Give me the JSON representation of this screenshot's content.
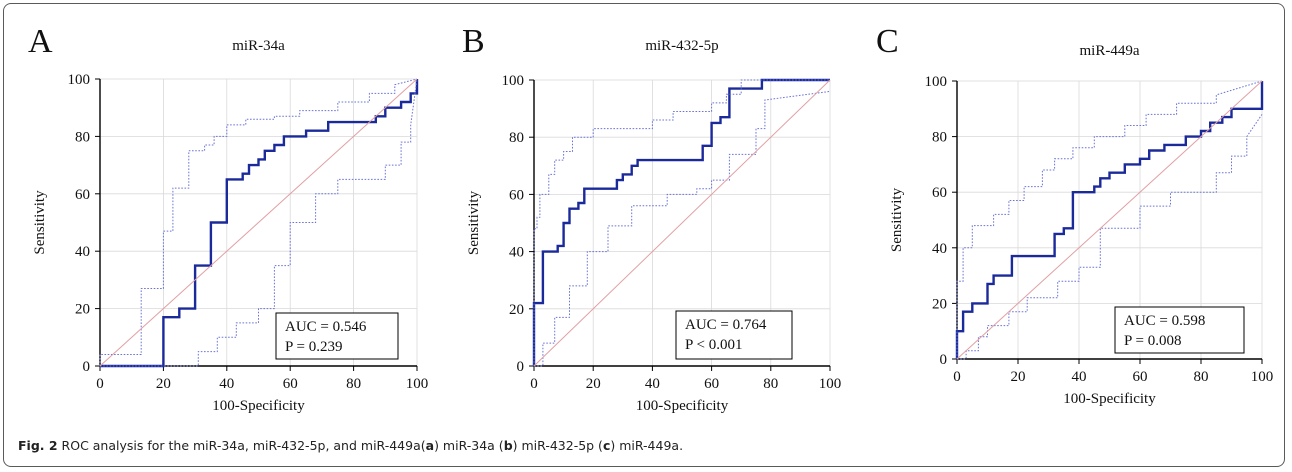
{
  "caption": {
    "fig_label": "Fig. 2",
    "t1": " ROC analysis for the miR-34a, miR-432-5p, and miR-449a(",
    "l1": "a",
    "t2": ") miR-34a (",
    "l2": "b",
    "t3": ") miR-432-5p (",
    "l3": "c",
    "t4": ") miR-449a."
  },
  "chart_data": [
    {
      "type": "line",
      "panel_letter": "A",
      "title": "miR-34a",
      "xlabel": "100-Specificity",
      "ylabel": "Sensitivity",
      "xlim": [
        0,
        100
      ],
      "ylim": [
        0,
        100
      ],
      "x_ticks": [
        0,
        20,
        40,
        60,
        80,
        100
      ],
      "y_ticks": [
        0,
        20,
        40,
        60,
        80,
        100
      ],
      "annotation": [
        "AUC = 0.546",
        "P = 0.239"
      ],
      "series": [
        {
          "role": "roc",
          "x": [
            0,
            20,
            20,
            25,
            25,
            30,
            30,
            35,
            35,
            40,
            40,
            45,
            45,
            47,
            47,
            50,
            50,
            52,
            52,
            55,
            55,
            58,
            58,
            60,
            60,
            65,
            65,
            70,
            70,
            72,
            72,
            87,
            87,
            90,
            90,
            95,
            95,
            98,
            98,
            100,
            100
          ],
          "y": [
            0,
            0,
            17,
            17,
            20,
            20,
            35,
            35,
            50,
            50,
            65,
            65,
            67,
            67,
            70,
            70,
            72,
            72,
            75,
            75,
            77,
            77,
            80,
            80,
            80,
            80,
            82,
            82,
            82,
            82,
            85,
            85,
            87,
            87,
            90,
            90,
            92,
            92,
            95,
            95,
            100
          ]
        },
        {
          "role": "ci-upper",
          "x": [
            0,
            0,
            13,
            13,
            20,
            20,
            23,
            23,
            28,
            28,
            33,
            33,
            36,
            36,
            40,
            40,
            46,
            46,
            55,
            55,
            63,
            63,
            75,
            75,
            85,
            85,
            93,
            93,
            100
          ],
          "y": [
            0,
            4,
            4,
            27,
            27,
            47,
            47,
            62,
            62,
            75,
            75,
            77,
            77,
            80,
            80,
            84,
            84,
            86,
            86,
            87,
            87,
            89,
            89,
            92,
            92,
            95,
            95,
            98,
            100
          ]
        },
        {
          "role": "ci-lower",
          "x": [
            0,
            31,
            31,
            37,
            37,
            43,
            43,
            50,
            50,
            55,
            55,
            60,
            60,
            68,
            68,
            75,
            75,
            90,
            90,
            95,
            95,
            98,
            98,
            100
          ],
          "y": [
            0,
            0,
            5,
            5,
            10,
            10,
            15,
            15,
            20,
            20,
            35,
            35,
            50,
            50,
            60,
            60,
            65,
            65,
            70,
            70,
            78,
            78,
            84,
            100
          ]
        },
        {
          "role": "reference",
          "x": [
            0,
            100
          ],
          "y": [
            0,
            100
          ]
        }
      ]
    },
    {
      "type": "line",
      "panel_letter": "B",
      "title": "miR-432-5p",
      "xlabel": "100-Specificity",
      "ylabel": "Sensitivity",
      "xlim": [
        0,
        100
      ],
      "ylim": [
        0,
        100
      ],
      "x_ticks": [
        0,
        20,
        40,
        60,
        80,
        100
      ],
      "y_ticks": [
        0,
        20,
        40,
        60,
        80,
        100
      ],
      "annotation": [
        "AUC = 0.764",
        "P < 0.001"
      ],
      "series": [
        {
          "role": "roc",
          "x": [
            0,
            0,
            3,
            3,
            8,
            8,
            10,
            10,
            12,
            12,
            15,
            15,
            17,
            17,
            28,
            28,
            30,
            30,
            33,
            33,
            35,
            35,
            57,
            57,
            60,
            60,
            63,
            63,
            66,
            66,
            77,
            77,
            100
          ],
          "y": [
            0,
            22,
            22,
            40,
            40,
            42,
            42,
            50,
            50,
            55,
            55,
            57,
            57,
            62,
            62,
            65,
            65,
            67,
            67,
            70,
            70,
            72,
            72,
            77,
            77,
            85,
            85,
            87,
            87,
            97,
            97,
            100,
            100
          ]
        },
        {
          "role": "ci-upper",
          "x": [
            0,
            0,
            1,
            1,
            2,
            2,
            5,
            5,
            7,
            7,
            10,
            10,
            13,
            13,
            20,
            20,
            40,
            40,
            47,
            47,
            60,
            60,
            65,
            65,
            70,
            70,
            100
          ],
          "y": [
            0,
            48,
            48,
            52,
            52,
            60,
            60,
            67,
            67,
            72,
            72,
            75,
            75,
            80,
            80,
            83,
            83,
            86,
            86,
            89,
            89,
            92,
            92,
            95,
            95,
            100,
            100
          ]
        },
        {
          "role": "ci-lower",
          "x": [
            0,
            3,
            3,
            7,
            7,
            12,
            12,
            18,
            18,
            25,
            25,
            33,
            33,
            45,
            45,
            55,
            55,
            60,
            60,
            66,
            66,
            75,
            75,
            78,
            78,
            100
          ],
          "y": [
            0,
            0,
            8,
            8,
            17,
            17,
            28,
            28,
            40,
            40,
            49,
            49,
            56,
            56,
            60,
            60,
            62,
            62,
            65,
            65,
            74,
            74,
            83,
            83,
            93,
            96
          ]
        },
        {
          "role": "reference",
          "x": [
            0,
            100
          ],
          "y": [
            0,
            100
          ]
        }
      ]
    },
    {
      "type": "line",
      "panel_letter": "C",
      "title": "miR-449a",
      "xlabel": "100-Specificity",
      "ylabel": "Sensitivity",
      "xlim": [
        0,
        100
      ],
      "ylim": [
        0,
        100
      ],
      "x_ticks": [
        0,
        20,
        40,
        60,
        80,
        100
      ],
      "y_ticks": [
        0,
        20,
        40,
        60,
        80,
        100
      ],
      "annotation": [
        "AUC = 0.598",
        "P = 0.008"
      ],
      "series": [
        {
          "role": "roc",
          "x": [
            0,
            0,
            2,
            2,
            5,
            5,
            10,
            10,
            12,
            12,
            18,
            18,
            32,
            32,
            35,
            35,
            38,
            38,
            45,
            45,
            47,
            47,
            50,
            50,
            55,
            55,
            60,
            60,
            63,
            63,
            68,
            68,
            75,
            75,
            80,
            80,
            83,
            83,
            87,
            87,
            90,
            90,
            100,
            100
          ],
          "y": [
            0,
            10,
            10,
            17,
            17,
            20,
            20,
            27,
            27,
            30,
            30,
            37,
            37,
            45,
            45,
            47,
            47,
            60,
            60,
            62,
            62,
            65,
            65,
            67,
            67,
            70,
            70,
            72,
            72,
            75,
            75,
            77,
            77,
            80,
            80,
            82,
            82,
            85,
            85,
            87,
            87,
            90,
            90,
            100
          ]
        },
        {
          "role": "ci-upper",
          "x": [
            0,
            0,
            2,
            2,
            5,
            5,
            12,
            12,
            17,
            17,
            22,
            22,
            28,
            28,
            32,
            32,
            38,
            38,
            45,
            45,
            55,
            55,
            62,
            62,
            72,
            72,
            85,
            85,
            100
          ],
          "y": [
            0,
            28,
            28,
            40,
            40,
            48,
            48,
            52,
            52,
            57,
            57,
            62,
            62,
            68,
            68,
            72,
            72,
            76,
            76,
            80,
            80,
            84,
            84,
            88,
            88,
            92,
            92,
            95,
            100
          ]
        },
        {
          "role": "ci-lower",
          "x": [
            0,
            3,
            3,
            7,
            7,
            10,
            10,
            17,
            17,
            23,
            23,
            33,
            33,
            40,
            40,
            47,
            47,
            60,
            60,
            70,
            70,
            85,
            85,
            90,
            90,
            95,
            95,
            100
          ],
          "y": [
            0,
            0,
            3,
            3,
            8,
            8,
            12,
            12,
            17,
            17,
            22,
            22,
            28,
            28,
            33,
            33,
            47,
            47,
            55,
            55,
            60,
            60,
            67,
            67,
            73,
            73,
            80,
            88
          ]
        },
        {
          "role": "reference",
          "x": [
            0,
            100
          ],
          "y": [
            0,
            100
          ]
        }
      ]
    }
  ],
  "colors": {
    "roc": "#1b2a9b",
    "ci": "#6a74d6",
    "reference": "#e2a0a4",
    "grid": "#d9d9d9",
    "axis": "#000000",
    "frame": "#5a5a5a"
  }
}
